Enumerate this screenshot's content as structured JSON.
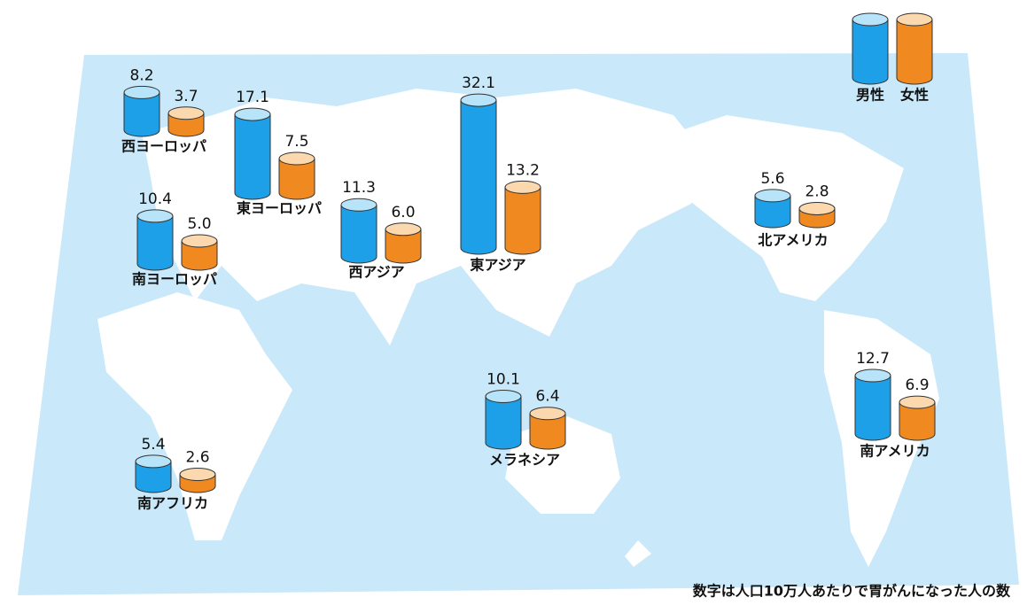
{
  "chart_data": {
    "type": "cylinder",
    "note": "数字は人口10万人あたりで胃がんになった人の数",
    "categories": [
      "西ヨーロッパ",
      "東ヨーロッパ",
      "南ヨーロッパ",
      "西アジア",
      "東アジア",
      "北アメリカ",
      "南アメリカ",
      "メラネシア",
      "南アフリカ"
    ],
    "series": [
      {
        "name": "男性",
        "color": "#1ea0e8",
        "top_color": "#b8e4fa",
        "values": [
          8.2,
          17.1,
          10.4,
          11.3,
          32.1,
          5.6,
          12.7,
          10.1,
          5.4
        ],
        "value_labels": [
          "8.2",
          "17.1",
          "10.4",
          "11.3",
          "32.1",
          "5.6",
          "12.7",
          "10.1",
          "5.4"
        ]
      },
      {
        "name": "女性",
        "color": "#f08a20",
        "top_color": "#fcd8ae",
        "values": [
          3.7,
          7.5,
          5.0,
          6.0,
          13.2,
          2.8,
          6.9,
          6.4,
          2.6
        ],
        "value_labels": [
          "3.7",
          "7.5",
          "5.0",
          "6.0",
          "13.2",
          "2.8",
          "6.9",
          "6.4",
          "2.6"
        ]
      }
    ]
  }
}
